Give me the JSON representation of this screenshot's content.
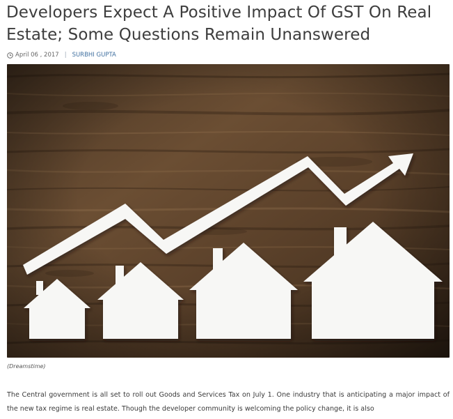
{
  "article": {
    "title": "Developers Expect A Positive Impact Of GST On Real Estate; Some Questions Remain Unanswered",
    "date": "April 06 , 2017",
    "separator": "|",
    "author": "SURBHI GUPTA",
    "image": {
      "caption": "(Dreamstime)",
      "subject": "paper houses increasing in size with rising arrow on wooden background"
    },
    "body_paragraph": "The Central government is all set to roll out Goods and Services Tax on July 1. One industry that is anticipating a major impact of the new tax regime is real estate. Though the developer community is welcoming the policy change, it is also"
  },
  "icons": {
    "date_icon": "clock-icon"
  },
  "colors": {
    "title": "#3d3d3d",
    "author_link": "#3f6f9f",
    "wood_dark": "#3b2a1c",
    "wood_light": "#7a5a3e"
  }
}
